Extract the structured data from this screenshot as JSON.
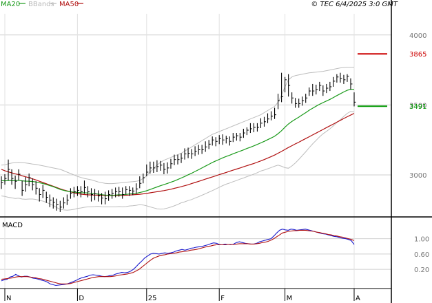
{
  "chart_data": [
    {
      "type": "line",
      "name": "price",
      "legend": [
        {
          "name": "MA20",
          "color": "#1a9a1a"
        },
        {
          "name": "BBands",
          "color": "#b8b8b8"
        },
        {
          "name": "MA50",
          "color": "#b01010"
        }
      ],
      "copyright": "© TEC 6/4/2025 3:0 GMT",
      "ylim": [
        2700,
        4250
      ],
      "y_ticks": [
        3000,
        3500,
        4000
      ],
      "y_tick_labels": [
        "3000",
        "3500",
        "4000"
      ],
      "x_tick_labels": [
        "N",
        "D",
        "25",
        "F",
        "M",
        "A"
      ],
      "x_tick_indices": [
        0,
        21,
        41,
        62,
        81,
        101
      ],
      "levels": [
        {
          "label": "3865",
          "value": 3865,
          "color": "#cc0000"
        },
        {
          "label": "3491",
          "value": 3491,
          "color": "#009900"
        }
      ],
      "grid": true,
      "series": [
        {
          "name": "Close",
          "values": [
            2945,
            2975,
            3040,
            2975,
            2955,
            3005,
            2890,
            2930,
            2980,
            2930,
            2905,
            2860,
            2890,
            2840,
            2820,
            2805,
            2790,
            2770,
            2800,
            2820,
            2870,
            2880,
            2890,
            2880,
            2910,
            2880,
            2860,
            2865,
            2850,
            2835,
            2830,
            2860,
            2870,
            2880,
            2880,
            2860,
            2895,
            2890,
            2885,
            2900,
            2940,
            2980,
            3020,
            3050,
            3050,
            3060,
            3070,
            3040,
            3050,
            3080,
            3110,
            3110,
            3120,
            3150,
            3155,
            3150,
            3170,
            3180,
            3180,
            3200,
            3220,
            3250,
            3240,
            3260,
            3250,
            3260,
            3240,
            3270,
            3280,
            3270,
            3300,
            3320,
            3330,
            3340,
            3340,
            3370,
            3380,
            3400,
            3420,
            3430,
            3530,
            3560,
            3680,
            3640,
            3550,
            3510,
            3510,
            3530,
            3550,
            3600,
            3600,
            3610,
            3640,
            3600,
            3620,
            3630,
            3670,
            3700,
            3690,
            3680,
            3705,
            3650,
            3520
          ]
        },
        {
          "name": "High",
          "values": [
            2990,
            3005,
            3110,
            3040,
            2995,
            3040,
            2960,
            2985,
            3010,
            2975,
            2955,
            2905,
            2930,
            2880,
            2860,
            2840,
            2830,
            2815,
            2840,
            2860,
            2905,
            2915,
            2920,
            2920,
            2960,
            2920,
            2905,
            2900,
            2890,
            2870,
            2880,
            2890,
            2900,
            2910,
            2915,
            2910,
            2920,
            2920,
            2910,
            2940,
            2990,
            3010,
            3075,
            3095,
            3095,
            3105,
            3100,
            3085,
            3090,
            3115,
            3145,
            3145,
            3155,
            3190,
            3195,
            3185,
            3205,
            3215,
            3215,
            3240,
            3250,
            3275,
            3270,
            3285,
            3290,
            3280,
            3275,
            3300,
            3300,
            3300,
            3330,
            3340,
            3370,
            3370,
            3370,
            3405,
            3415,
            3440,
            3455,
            3480,
            3580,
            3730,
            3700,
            3720,
            3590,
            3550,
            3545,
            3560,
            3580,
            3625,
            3650,
            3645,
            3665,
            3640,
            3650,
            3665,
            3700,
            3720,
            3730,
            3715,
            3720,
            3690,
            3590
          ]
        },
        {
          "name": "Low",
          "values": [
            2900,
            2930,
            2960,
            2930,
            2900,
            2960,
            2850,
            2880,
            2920,
            2890,
            2860,
            2810,
            2835,
            2800,
            2770,
            2760,
            2745,
            2735,
            2760,
            2785,
            2830,
            2840,
            2850,
            2840,
            2865,
            2840,
            2810,
            2820,
            2810,
            2790,
            2790,
            2815,
            2830,
            2840,
            2845,
            2830,
            2860,
            2850,
            2855,
            2865,
            2905,
            2940,
            2990,
            3010,
            3015,
            3020,
            3030,
            3005,
            3010,
            3045,
            3070,
            3075,
            3085,
            3110,
            3120,
            3115,
            3135,
            3145,
            3150,
            3165,
            3185,
            3210,
            3205,
            3220,
            3215,
            3225,
            3210,
            3235,
            3245,
            3240,
            3265,
            3285,
            3300,
            3305,
            3310,
            3335,
            3345,
            3370,
            3390,
            3400,
            3470,
            3520,
            3590,
            3560,
            3510,
            3480,
            3480,
            3495,
            3515,
            3565,
            3565,
            3575,
            3600,
            3565,
            3585,
            3600,
            3630,
            3660,
            3660,
            3650,
            3665,
            3610,
            3490
          ]
        },
        {
          "name": "MA20",
          "values": [
            2960,
            2958,
            2960,
            2961,
            2960,
            2962,
            2958,
            2956,
            2955,
            2953,
            2950,
            2944,
            2939,
            2932,
            2924,
            2916,
            2906,
            2897,
            2890,
            2884,
            2880,
            2877,
            2875,
            2873,
            2872,
            2871,
            2869,
            2866,
            2863,
            2859,
            2856,
            2855,
            2855,
            2856,
            2858,
            2859,
            2861,
            2864,
            2866,
            2869,
            2874,
            2880,
            2887,
            2896,
            2905,
            2914,
            2923,
            2931,
            2939,
            2948,
            2957,
            2967,
            2978,
            2989,
            3001,
            3012,
            3025,
            3037,
            3050,
            3063,
            3076,
            3089,
            3100,
            3111,
            3122,
            3132,
            3141,
            3151,
            3160,
            3170,
            3179,
            3189,
            3198,
            3208,
            3218,
            3229,
            3240,
            3252,
            3264,
            3276,
            3295,
            3316,
            3341,
            3364,
            3382,
            3398,
            3413,
            3429,
            3445,
            3462,
            3477,
            3491,
            3505,
            3517,
            3528,
            3540,
            3553,
            3567,
            3580,
            3593,
            3605,
            3612,
            3611
          ]
        },
        {
          "name": "MA50",
          "values": [
            3040,
            3030,
            3022,
            3015,
            3008,
            3002,
            2994,
            2987,
            2980,
            2972,
            2964,
            2955,
            2946,
            2937,
            2928,
            2919,
            2910,
            2901,
            2893,
            2886,
            2879,
            2872,
            2867,
            2863,
            2860,
            2858,
            2857,
            2856,
            2855,
            2854,
            2853,
            2853,
            2853,
            2853,
            2853,
            2854,
            2855,
            2856,
            2858,
            2860,
            2862,
            2865,
            2868,
            2872,
            2876,
            2880,
            2884,
            2888,
            2893,
            2898,
            2904,
            2910,
            2916,
            2923,
            2930,
            2938,
            2946,
            2954,
            2962,
            2970,
            2978,
            2986,
            2994,
            3002,
            3010,
            3018,
            3026,
            3034,
            3042,
            3050,
            3058,
            3066,
            3074,
            3082,
            3091,
            3100,
            3110,
            3120,
            3131,
            3142,
            3155,
            3168,
            3182,
            3196,
            3209,
            3222,
            3234,
            3247,
            3260,
            3273,
            3286,
            3299,
            3312,
            3325,
            3338,
            3351,
            3364,
            3377,
            3390,
            3403,
            3416,
            3428,
            3440
          ]
        },
        {
          "name": "BBandUpper",
          "values": [
            3070,
            3072,
            3080,
            3085,
            3088,
            3090,
            3088,
            3086,
            3082,
            3078,
            3075,
            3070,
            3065,
            3060,
            3055,
            3050,
            3045,
            3040,
            3030,
            3020,
            3010,
            3000,
            2990,
            2982,
            2975,
            2970,
            2965,
            2958,
            2950,
            2945,
            2940,
            2938,
            2938,
            2940,
            2942,
            2945,
            2948,
            2950,
            2952,
            2955,
            2960,
            2975,
            2995,
            3020,
            3045,
            3070,
            3090,
            3105,
            3115,
            3125,
            3135,
            3145,
            3155,
            3170,
            3185,
            3200,
            3215,
            3230,
            3245,
            3260,
            3275,
            3290,
            3300,
            3310,
            3320,
            3330,
            3340,
            3350,
            3360,
            3370,
            3380,
            3390,
            3400,
            3410,
            3420,
            3430,
            3445,
            3460,
            3475,
            3490,
            3520,
            3570,
            3630,
            3680,
            3700,
            3710,
            3715,
            3720,
            3725,
            3730,
            3732,
            3735,
            3738,
            3740,
            3745,
            3750,
            3755,
            3760,
            3765,
            3768,
            3770,
            3770,
            3770
          ]
        },
        {
          "name": "BBandLower",
          "values": [
            2850,
            2846,
            2840,
            2837,
            2832,
            2834,
            2828,
            2826,
            2828,
            2828,
            2825,
            2818,
            2813,
            2804,
            2793,
            2782,
            2767,
            2754,
            2750,
            2748,
            2750,
            2754,
            2760,
            2764,
            2769,
            2772,
            2773,
            2774,
            2776,
            2773,
            2772,
            2772,
            2772,
            2772,
            2774,
            2773,
            2774,
            2778,
            2780,
            2783,
            2788,
            2785,
            2779,
            2772,
            2765,
            2758,
            2756,
            2757,
            2763,
            2771,
            2779,
            2789,
            2801,
            2808,
            2817,
            2824,
            2835,
            2844,
            2855,
            2866,
            2877,
            2888,
            2900,
            2912,
            2924,
            2934,
            2942,
            2952,
            2960,
            2970,
            2978,
            2988,
            2996,
            3006,
            3016,
            3028,
            3035,
            3044,
            3053,
            3062,
            3070,
            3062,
            3052,
            3048,
            3064,
            3086,
            3111,
            3138,
            3165,
            3194,
            3222,
            3247,
            3272,
            3294,
            3311,
            3330,
            3351,
            3374,
            3395,
            3418,
            3440,
            3454,
            3452
          ]
        }
      ]
    },
    {
      "type": "line",
      "name": "MACD",
      "title": "MACD",
      "ylim": [
        -0.3,
        1.55
      ],
      "y_ticks": [
        0.2,
        0.6,
        1.0
      ],
      "y_tick_labels": [
        "0.20",
        "0.60",
        "1.00"
      ],
      "grid": true,
      "series": [
        {
          "name": "MACD",
          "color": "#1a1acc",
          "values": [
            -0.1,
            -0.07,
            -0.06,
            0.0,
            0.02,
            0.07,
            0.03,
            0.0,
            0.02,
            0.02,
            0.0,
            -0.03,
            -0.04,
            -0.06,
            -0.08,
            -0.1,
            -0.13,
            -0.18,
            -0.2,
            -0.22,
            -0.21,
            -0.2,
            -0.19,
            -0.18,
            -0.15,
            -0.12,
            -0.09,
            -0.05,
            -0.02,
            0.0,
            0.02,
            0.05,
            0.06,
            0.05,
            0.04,
            0.02,
            0.01,
            0.02,
            0.04,
            0.05,
            0.08,
            0.1,
            0.12,
            0.11,
            0.12,
            0.15,
            0.2,
            0.27,
            0.35,
            0.42,
            0.5,
            0.55,
            0.6,
            0.62,
            0.61,
            0.6,
            0.62,
            0.63,
            0.62,
            0.63,
            0.65,
            0.68,
            0.7,
            0.72,
            0.7,
            0.72,
            0.75,
            0.76,
            0.78,
            0.79,
            0.8,
            0.82,
            0.84,
            0.87,
            0.89,
            0.88,
            0.85,
            0.84,
            0.86,
            0.85,
            0.84,
            0.86,
            0.9,
            0.92,
            0.9,
            0.88,
            0.87,
            0.86,
            0.86,
            0.88,
            0.92,
            0.94,
            0.96,
            0.98,
            1.0,
            1.07,
            1.15,
            1.22,
            1.25,
            1.23,
            1.22,
            1.25,
            1.24,
            1.22,
            1.23,
            1.24,
            1.25,
            1.23,
            1.21,
            1.19,
            1.17,
            1.15,
            1.13,
            1.12,
            1.1,
            1.08,
            1.06,
            1.05,
            1.03,
            1.01,
            1.0,
            0.98,
            0.95,
            0.85
          ]
        },
        {
          "name": "Signal",
          "color": "#b01010",
          "values": [
            -0.06,
            -0.05,
            -0.04,
            -0.03,
            -0.02,
            0.0,
            0.01,
            0.01,
            0.01,
            0.01,
            0.0,
            -0.01,
            -0.02,
            -0.04,
            -0.05,
            -0.07,
            -0.09,
            -0.11,
            -0.13,
            -0.15,
            -0.17,
            -0.18,
            -0.18,
            -0.18,
            -0.17,
            -0.15,
            -0.13,
            -0.11,
            -0.09,
            -0.07,
            -0.05,
            -0.03,
            -0.01,
            0.0,
            0.01,
            0.01,
            0.01,
            0.01,
            0.01,
            0.02,
            0.03,
            0.05,
            0.06,
            0.07,
            0.08,
            0.1,
            0.12,
            0.16,
            0.2,
            0.26,
            0.32,
            0.38,
            0.44,
            0.49,
            0.52,
            0.55,
            0.57,
            0.58,
            0.6,
            0.61,
            0.62,
            0.63,
            0.65,
            0.66,
            0.67,
            0.68,
            0.7,
            0.71,
            0.72,
            0.74,
            0.76,
            0.78,
            0.8,
            0.81,
            0.83,
            0.84,
            0.84,
            0.84,
            0.84,
            0.85,
            0.85,
            0.85,
            0.86,
            0.87,
            0.87,
            0.87,
            0.87,
            0.86,
            0.86,
            0.87,
            0.88,
            0.9,
            0.91,
            0.93,
            0.96,
            1.0,
            1.05,
            1.1,
            1.15,
            1.17,
            1.19,
            1.2,
            1.21,
            1.21,
            1.22,
            1.22,
            1.22,
            1.21,
            1.2,
            1.19,
            1.17,
            1.16,
            1.14,
            1.13,
            1.11,
            1.1,
            1.08,
            1.07,
            1.05,
            1.04,
            1.02,
            1.0,
            0.98,
            0.95
          ]
        }
      ]
    }
  ]
}
